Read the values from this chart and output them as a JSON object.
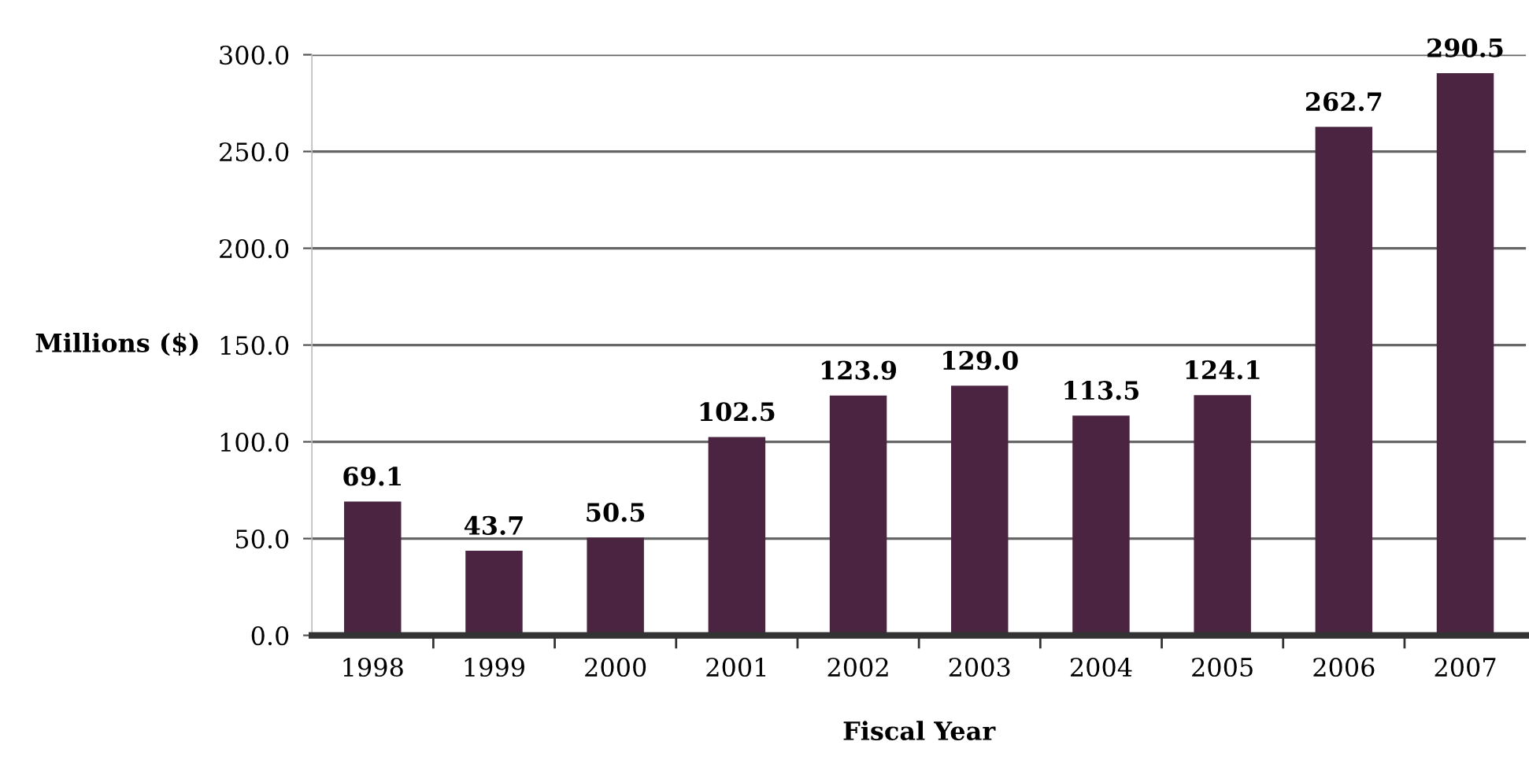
{
  "chart_data": {
    "type": "bar",
    "xlabel": "Fiscal Year",
    "ylabel": "Millions ($)",
    "categories": [
      "1998",
      "1999",
      "2000",
      "2001",
      "2002",
      "2003",
      "2004",
      "2005",
      "2006",
      "2007"
    ],
    "values": [
      69.1,
      43.7,
      50.5,
      102.5,
      123.9,
      129.0,
      113.5,
      124.1,
      262.7,
      290.5
    ],
    "value_labels": [
      "69.1",
      "43.7",
      "50.5",
      "102.5",
      "123.9",
      "129.0",
      "113.5",
      "124.1",
      "262.7",
      "290.5"
    ],
    "color": "#4a2440",
    "ylim": [
      0,
      300
    ],
    "yticks": [
      {
        "value": 0,
        "label": "0.0"
      },
      {
        "value": 50,
        "label": "50.0"
      },
      {
        "value": 100,
        "label": "100.0"
      },
      {
        "value": 150,
        "label": "150.0"
      },
      {
        "value": 200,
        "label": "200.0"
      },
      {
        "value": 250,
        "label": "250.0"
      },
      {
        "value": 300,
        "label": "300.0"
      }
    ],
    "grid": "y",
    "legend": false
  }
}
